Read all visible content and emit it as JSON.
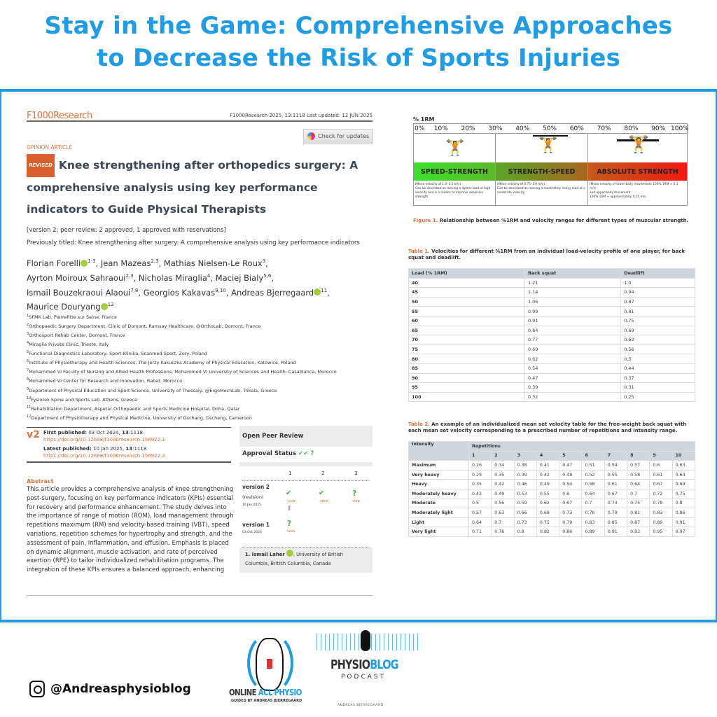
{
  "banner": {
    "title_line1": "Stay in the Game: Comprehensive Approaches",
    "title_line2": "to Decrease the Risk of Sports Injuries"
  },
  "article": {
    "journal": "F1000Research",
    "citation": "F1000Research 2025, 13:1118 Last updated: 12 JUN 2025",
    "check_updates": "Check for updates",
    "type": "OPINION ARTICLE",
    "revised_badge": "REVISED",
    "title": "Knee strengthening after orthopedics surgery: A comprehensive analysis using key performance indicators to Guide Physical Therapists",
    "version_status": "[version 2; peer review: 2 approved, 1 approved with reservations]",
    "previous_title": "Previously titled: Knee strengthening after surgery: A comprehensive analysis using key performance indicators",
    "authors": [
      {
        "name": "Florian Forelli",
        "sup": "1-3",
        "orcid": true
      },
      {
        "name": "Jean Mazeas",
        "sup": "2,3"
      },
      {
        "name": "Mathias Nielsen-Le Roux",
        "sup": "3"
      },
      {
        "name": "Ayrton Moiroux Sahraoui",
        "sup": "2,3"
      },
      {
        "name": "Nicholas Miraglia",
        "sup": "4"
      },
      {
        "name": "Maciej Bialy",
        "sup": "5,6"
      },
      {
        "name": "Ismail Bouzekraoui Alaoui",
        "sup": "7,8"
      },
      {
        "name": "Georgios Kakavas",
        "sup": "9,10"
      },
      {
        "name": "Andreas Bjerregaard",
        "sup": "11",
        "orcid": true
      },
      {
        "name": "Maurice Douryang",
        "sup": "12",
        "orcid": true
      }
    ],
    "affiliations": [
      {
        "n": "1",
        "t": "SFMK Lab, Pierrefitte sur Seine, France"
      },
      {
        "n": "2",
        "t": "Orthopaedic Surgery Department, Clinic of Domont, Ramsay Healthcare, @OrthoLab, Domont, France"
      },
      {
        "n": "3",
        "t": "Orthosport Rehab Center, Domont, France"
      },
      {
        "n": "4",
        "t": "Miraglia Private Clinic, Trieste, Italy"
      },
      {
        "n": "5",
        "t": "Functional Diagnostics Laboratory, Sport-Klinika, Scanmed Sport, Zory, Poland"
      },
      {
        "n": "6",
        "t": "Institute of Physiotherapy and Health Sciences, The Jerzy Kukuczka Academy of Physical Education, Katowice, Poland"
      },
      {
        "n": "7",
        "t": "Mohammed VI Faculty of Nursing and Allied Health Professions, Mohammed VI University of Sciences and Health, Casablanca, Morocco"
      },
      {
        "n": "8",
        "t": "Mohammed VI Center for Research and Innovation, Rabat, Morocco"
      },
      {
        "n": "9",
        "t": "Department of Physical Education and Sport Science, University of Thessaly, @ErgoMechLab, Trikala, Greece"
      },
      {
        "n": "10",
        "t": "Fysiotek Spine and Sports Lab, Athens, Greece"
      },
      {
        "n": "11",
        "t": "Rehabilitation Department, Aspetar Orthopaedic and Sports Medicine Hospital, Doha, Qatar"
      },
      {
        "n": "12",
        "t": "Department of Physiotherapy and Physical Medicine, University of Dschang, Dscheng, Cameroon"
      }
    ],
    "version_label": "v2",
    "first_published_label": "First published:",
    "first_published": "03 Oct 2024, ",
    "vol": "13",
    "art": ":1118",
    "doi1": "https://doi.org/10.12688/f1000research.156922.1",
    "latest_published_label": "Latest published:",
    "latest_published": "10 Jan 2025, ",
    "doi2": "https://doi.org/10.12688/f1000research.156922.2",
    "abstract_heading": "Abstract",
    "abstract": "This article provides a comprehensive analysis of knee strengthening post-surgery, focusing on key performance indicators (KPIs) essential for recovery and performance enhancement. The study delves into the importance of range of motion (ROM), load management through repetitions maximum (RM) and velocity-based training (VBT), speed variations, repetition schemes for hypertrophy and strength, and the assessment of pain, inflammation, and effusion. Emphasis is placed on dynamic alignment, muscle activation, and rate of perceived exertion (RPE) to tailor individualized rehabilitation programs. The integration of these KPIs ensures a balanced approach, enhancing"
  },
  "peer_review": {
    "heading": "Open Peer Review",
    "approval_label": "Approval Status",
    "cols": [
      "1",
      "2",
      "3"
    ],
    "v2": {
      "label": "version 2",
      "sub": "(revision)",
      "date": "10 Jan 2025"
    },
    "v1": {
      "label": "version 1",
      "date": "03 Oct 2024"
    },
    "view": "view",
    "reviewer": "1. Ismail Laher",
    "reviewer_affil": ", University of British Columbia, British Columbia, Canada"
  },
  "figure1": {
    "axis_label": "% 1RM",
    "ticks": [
      "0%",
      "10%",
      "20%",
      "30%",
      "40%",
      "50%",
      "60%",
      "70%",
      "80%",
      "90%",
      "100%"
    ],
    "bands": [
      {
        "label": "SPEED-STRENGTH",
        "desc": "(Mean velocity of 1.0–1.5 m/s).\nCan be described as moving a lighter load at high velocity and is a means to improve explosive strength"
      },
      {
        "label": "STRENGTH-SPEED",
        "desc": "(Mean velocity of 0.75–1.0 m/s).\nCan be described as moving a moderately heavy load at a moderate velocity."
      },
      {
        "label": "ABSOLUTE STRENGTH",
        "desc": "(Mean velocity of lower-body movements 100% 1RM ≈ 0.3 m/s)\nand upper-body movement\n100% 1RM ≈ approximately 0.15 m/s."
      }
    ],
    "caption_label": "Figure 1.",
    "caption": " Relationship between %1RM and velocity ranges for different types of muscular strength."
  },
  "table1": {
    "caption_label": "Table 1.",
    "caption": " Velocities for different %1RM from an individual load-velocity profile of one player, for back squat and deadlift.",
    "headers": [
      "Load (% 1RM)",
      "Back squat",
      "Deadlift"
    ],
    "rows": [
      [
        "40",
        "1.21",
        "1.0"
      ],
      [
        "45",
        "1.14",
        "0.94"
      ],
      [
        "50",
        "1.06",
        "0.87"
      ],
      [
        "55",
        "0.99",
        "0.81"
      ],
      [
        "60",
        "0.91",
        "0.75"
      ],
      [
        "65",
        "0.84",
        "0.69"
      ],
      [
        "70",
        "0.77",
        "0.62"
      ],
      [
        "75",
        "0.69",
        "0.56"
      ],
      [
        "80",
        "0.62",
        "0.5"
      ],
      [
        "85",
        "0.54",
        "0.44"
      ],
      [
        "90",
        "0.47",
        "0.37"
      ],
      [
        "95",
        "0.39",
        "0.31"
      ],
      [
        "100",
        "0.32",
        "0.25"
      ]
    ]
  },
  "table2": {
    "caption_label": "Table 2.",
    "caption": " An example of an individualized mean set velocity table for the free-weight back squat with each mean set velocity corresponding to a prescribed number of repetitions and intensity range.",
    "header_intensity": "Intensity",
    "header_reps": "Repetitions",
    "reps": [
      "1",
      "2",
      "3",
      "4",
      "5",
      "6",
      "7",
      "8",
      "9",
      "10"
    ],
    "rows": [
      [
        "Maximum",
        "0.26",
        "0.34",
        "0.38",
        "0.41",
        "0.47",
        "0.51",
        "0.54",
        "0.57",
        "0.6",
        "0.63"
      ],
      [
        "Very heavy",
        "0.29",
        "0.35",
        "0.39",
        "0.42",
        "0.48",
        "0.52",
        "0.55",
        "0.58",
        "0.61",
        "0.64"
      ],
      [
        "Heavy",
        "0.35",
        "0.42",
        "0.46",
        "0.49",
        "0.54",
        "0.58",
        "0.61",
        "0.64",
        "0.67",
        "0.69"
      ],
      [
        "Moderately heavy",
        "0.42",
        "0.49",
        "0.53",
        "0.55",
        "0.6",
        "0.64",
        "0.67",
        "0.7",
        "0.72",
        "0.75"
      ],
      [
        "Moderate",
        "0.5",
        "0.56",
        "0.59",
        "0.62",
        "0.67",
        "0.7",
        "0.73",
        "0.75",
        "0.78",
        "0.8"
      ],
      [
        "Moderately light",
        "0.57",
        "0.63",
        "0.66",
        "0.68",
        "0.73",
        "0.76",
        "0.79",
        "0.81",
        "0.83",
        "0.86"
      ],
      [
        "Light",
        "0.64",
        "0.7",
        "0.73",
        "0.75",
        "0.79",
        "0.83",
        "0.85",
        "0.87",
        "0.89",
        "0.91"
      ],
      [
        "Very light",
        "0.71",
        "0.76",
        "0.8",
        "0.82",
        "0.86",
        "0.89",
        "0.91",
        "0.93",
        "0.95",
        "0.97"
      ]
    ]
  },
  "footer": {
    "instagram": "@Andreasphysioblog",
    "acl_logo": {
      "line1a": "ONLINE ",
      "line1b": "ACL PHYSIO",
      "line2": "GUIDED BY ANDREAS BJERREGAARD"
    },
    "podcast_logo": {
      "a": "PHYSIO",
      "b": "BLOG",
      "sub": "PODCAST",
      "author": "ANDREAS BJERREGAARD"
    }
  },
  "colors": {
    "brand_blue": "#1e9de6",
    "accent_orange": "#e2703a",
    "approve_green": "#4caf50"
  }
}
